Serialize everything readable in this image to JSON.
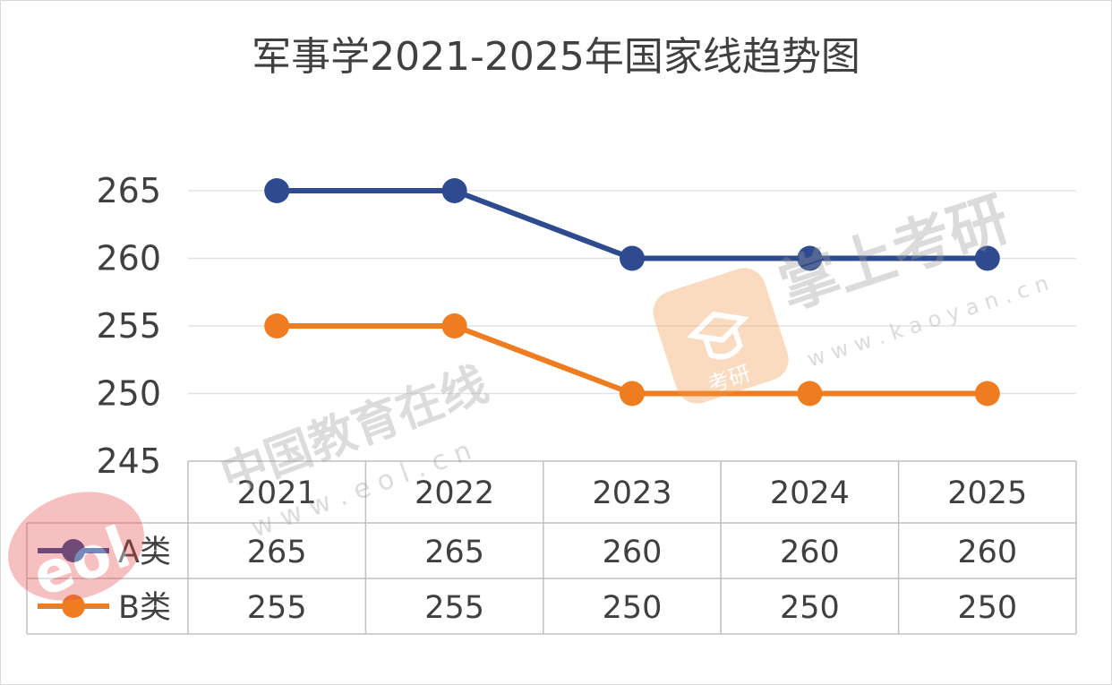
{
  "chart_data": {
    "type": "line",
    "title": "军事学2021-2025年国家线趋势图",
    "categories": [
      "2021",
      "2022",
      "2023",
      "2024",
      "2025"
    ],
    "yticks": [
      245,
      250,
      255,
      260,
      265
    ],
    "ylim": [
      245,
      265
    ],
    "grid": true,
    "legend": "data-table",
    "series": [
      {
        "name": "A类",
        "values": [
          265,
          265,
          260,
          260,
          260
        ],
        "color": "#2f4b8f"
      },
      {
        "name": "B类",
        "values": [
          255,
          255,
          250,
          250,
          250
        ],
        "color": "#ee7d22"
      }
    ]
  },
  "watermarks": {
    "eol_cn": "中国教育在线",
    "eol_url": "w w w . e o l . c n",
    "eol_logo": "eol",
    "kaoyan_cn": "掌上考研",
    "kaoyan_url": "w w w . k a o y a n . c n",
    "kaoyan_badge": "考研"
  }
}
